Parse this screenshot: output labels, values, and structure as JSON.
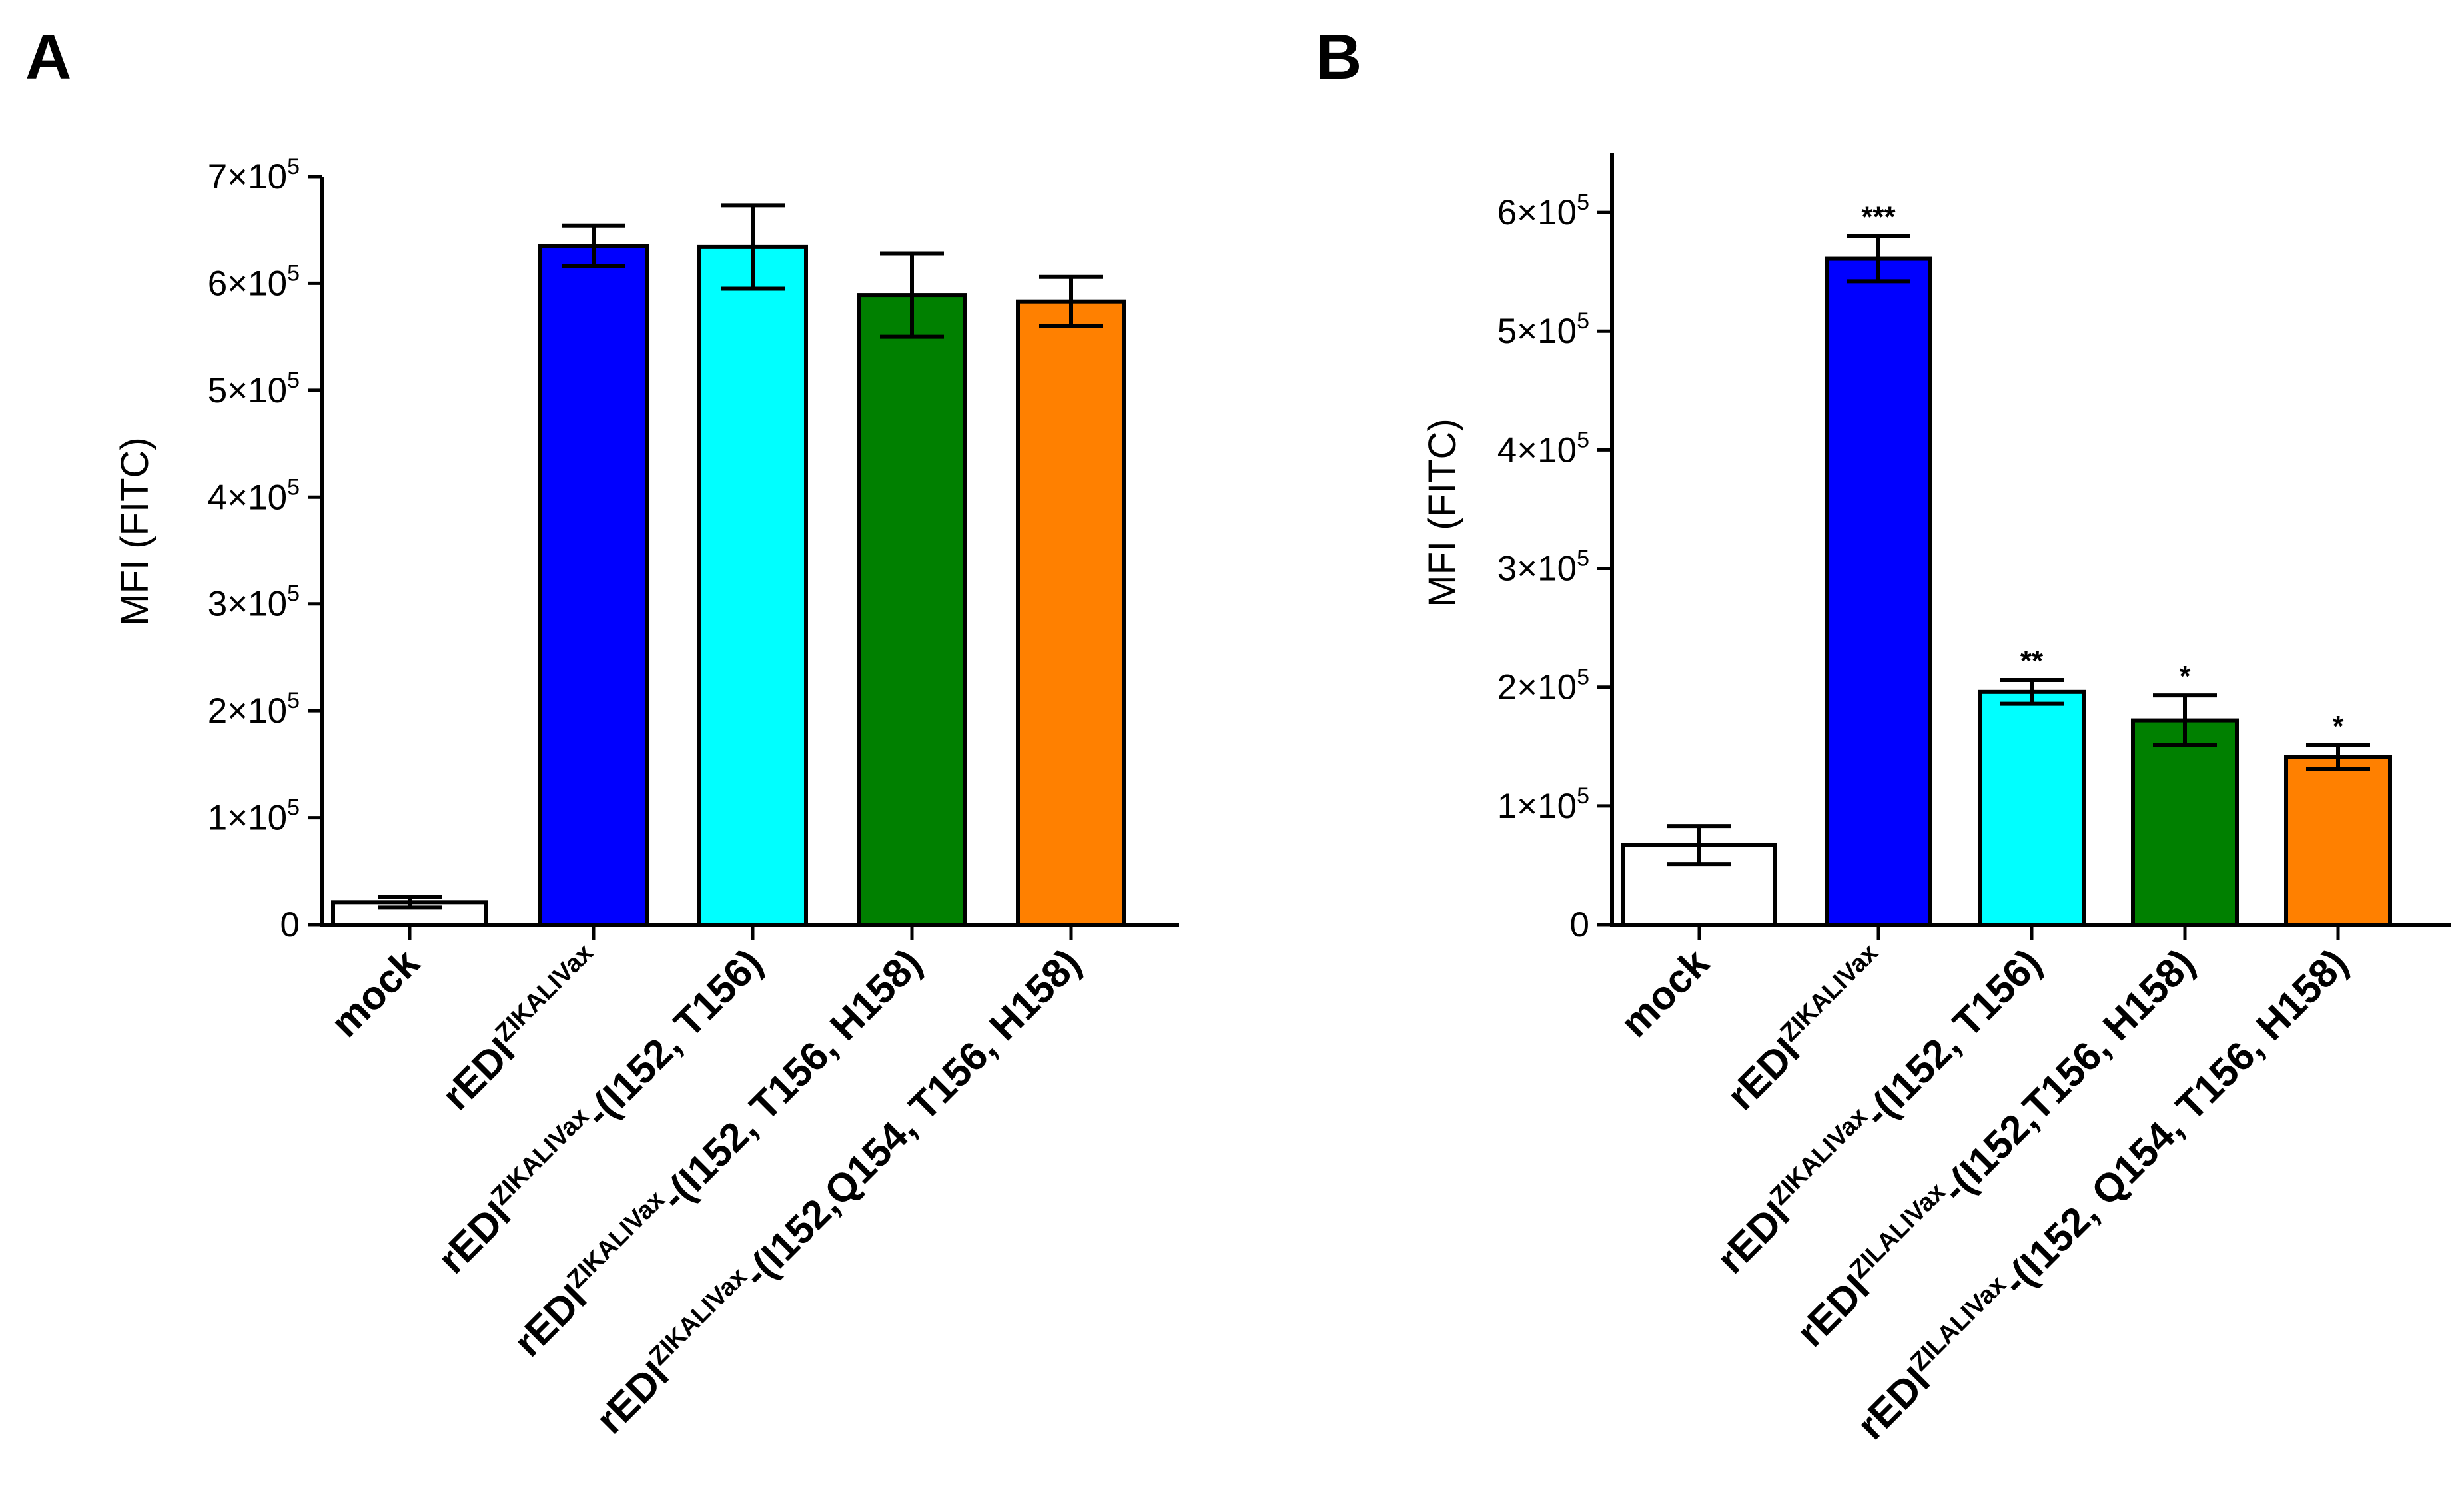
{
  "panel_labels": [
    "A",
    "B"
  ],
  "chart_data": [
    {
      "panel": "A",
      "type": "bar",
      "ylabel": "MFI (FITC)",
      "ylim": [
        0,
        700000
      ],
      "yticks": [
        {
          "value": 0,
          "label": "0"
        },
        {
          "value": 100000,
          "mant": "1×10",
          "exp": "5"
        },
        {
          "value": 200000,
          "mant": "2×10",
          "exp": "5"
        },
        {
          "value": 300000,
          "mant": "3×10",
          "exp": "5"
        },
        {
          "value": 400000,
          "mant": "4×10",
          "exp": "5"
        },
        {
          "value": 500000,
          "mant": "5×10",
          "exp": "5"
        },
        {
          "value": 600000,
          "mant": "6×10",
          "exp": "5"
        },
        {
          "value": 700000,
          "mant": "7×10",
          "exp": "5"
        }
      ],
      "categories": [
        {
          "pre": "mock",
          "sup": "",
          "post": ""
        },
        {
          "pre": "rEDI",
          "sup": "ZIKALIVax",
          "post": ""
        },
        {
          "pre": "rEDI",
          "sup": "ZIKALIVax",
          "post": "-(I152, T156)"
        },
        {
          "pre": "rEDI",
          "sup": "ZIKALIVax",
          "post": "-(I152, T156, H158)"
        },
        {
          "pre": "rEDI",
          "sup": "ZIKALIVax",
          "post": "-(I152,Q154, T156, H158)"
        }
      ],
      "values": [
        21000,
        635000,
        634000,
        589000,
        583000
      ],
      "errors": [
        5000,
        19000,
        39000,
        39000,
        23000
      ],
      "colors": [
        "#ffffff",
        "#0000ff",
        "#00ffff",
        "#008000",
        "#ff8000"
      ],
      "significance": [
        "",
        "",
        "",
        "",
        ""
      ]
    },
    {
      "panel": "B",
      "type": "bar",
      "ylabel": "MFI (FITC)",
      "ylim": [
        0,
        650000
      ],
      "yticks": [
        {
          "value": 0,
          "label": "0"
        },
        {
          "value": 100000,
          "mant": "1×10",
          "exp": "5"
        },
        {
          "value": 200000,
          "mant": "2×10",
          "exp": "5"
        },
        {
          "value": 300000,
          "mant": "3×10",
          "exp": "5"
        },
        {
          "value": 400000,
          "mant": "4×10",
          "exp": "5"
        },
        {
          "value": 500000,
          "mant": "5×10",
          "exp": "5"
        },
        {
          "value": 600000,
          "mant": "6×10",
          "exp": "5"
        }
      ],
      "categories": [
        {
          "pre": "mock",
          "sup": "",
          "post": ""
        },
        {
          "pre": "rEDI",
          "sup": "ZIKALIVax",
          "post": ""
        },
        {
          "pre": "rEDI",
          "sup": "ZIKALIVax",
          "post": "-(I152, T156)"
        },
        {
          "pre": "rEDI",
          "sup": "ZILALIVax",
          "post": "-(I152,T156, H158)"
        },
        {
          "pre": "rEDI",
          "sup": "ZILALIVax",
          "post": "-(I152, Q154, T156, H158)"
        }
      ],
      "values": [
        67000,
        561000,
        196000,
        172000,
        141000
      ],
      "errors": [
        16000,
        19000,
        10000,
        21000,
        10000
      ],
      "colors": [
        "#ffffff",
        "#0000ff",
        "#00ffff",
        "#008000",
        "#ff8000"
      ],
      "significance": [
        "",
        "***",
        "**",
        "*",
        "*"
      ]
    }
  ]
}
